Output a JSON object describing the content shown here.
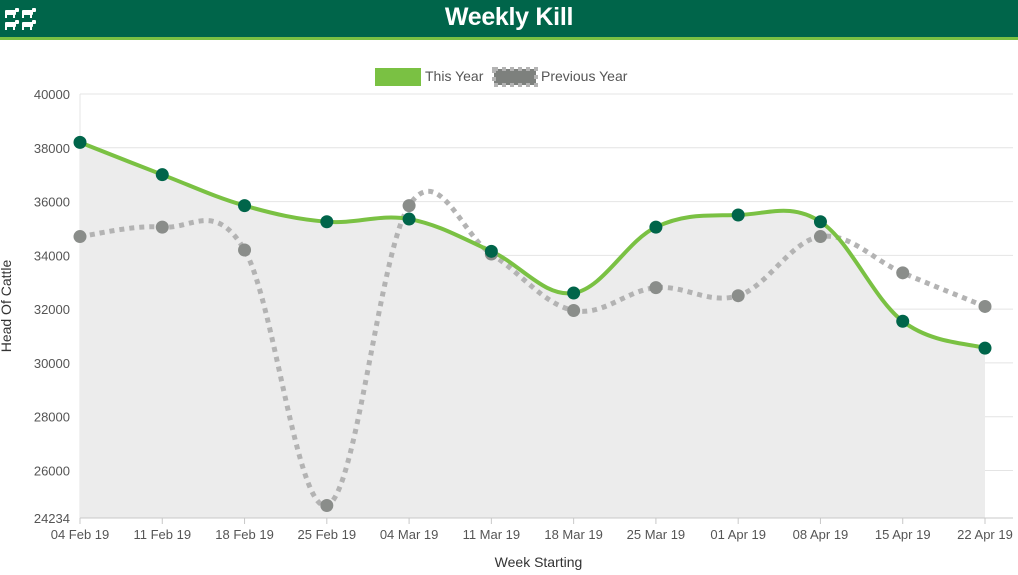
{
  "header": {
    "title": "Weekly Kill"
  },
  "colors": {
    "header_bg": "#00654a",
    "header_accent": "#7ac143",
    "this_year_line": "#7ac143",
    "this_year_marker": "#00654a",
    "previous_year_line": "#b3b3b3",
    "previous_year_marker": "#8a8d8a",
    "area_fill": "#ececec"
  },
  "chart_data": {
    "type": "line",
    "title": "",
    "xlabel": "Week Starting",
    "ylabel": "Head Of Cattle",
    "categories": [
      "04 Feb 19",
      "11 Feb 19",
      "18 Feb 19",
      "25 Feb 19",
      "04 Mar 19",
      "11 Mar 19",
      "18 Mar 19",
      "25 Mar 19",
      "01 Apr 19",
      "08 Apr 19",
      "15 Apr 19",
      "22 Apr 19"
    ],
    "ylim": [
      24234,
      40000
    ],
    "yticks": [
      24234,
      26000,
      28000,
      30000,
      32000,
      34000,
      36000,
      38000,
      40000
    ],
    "grid": true,
    "legend": "top-center",
    "series": [
      {
        "name": "This Year",
        "values": [
          38200,
          37000,
          35850,
          35250,
          35350,
          34150,
          32600,
          35050,
          35500,
          35250,
          31550,
          30550
        ]
      },
      {
        "name": "Previous Year",
        "values": [
          34700,
          35050,
          34200,
          24700,
          35850,
          34050,
          31950,
          32800,
          32500,
          34700,
          33350,
          32100
        ]
      }
    ]
  }
}
